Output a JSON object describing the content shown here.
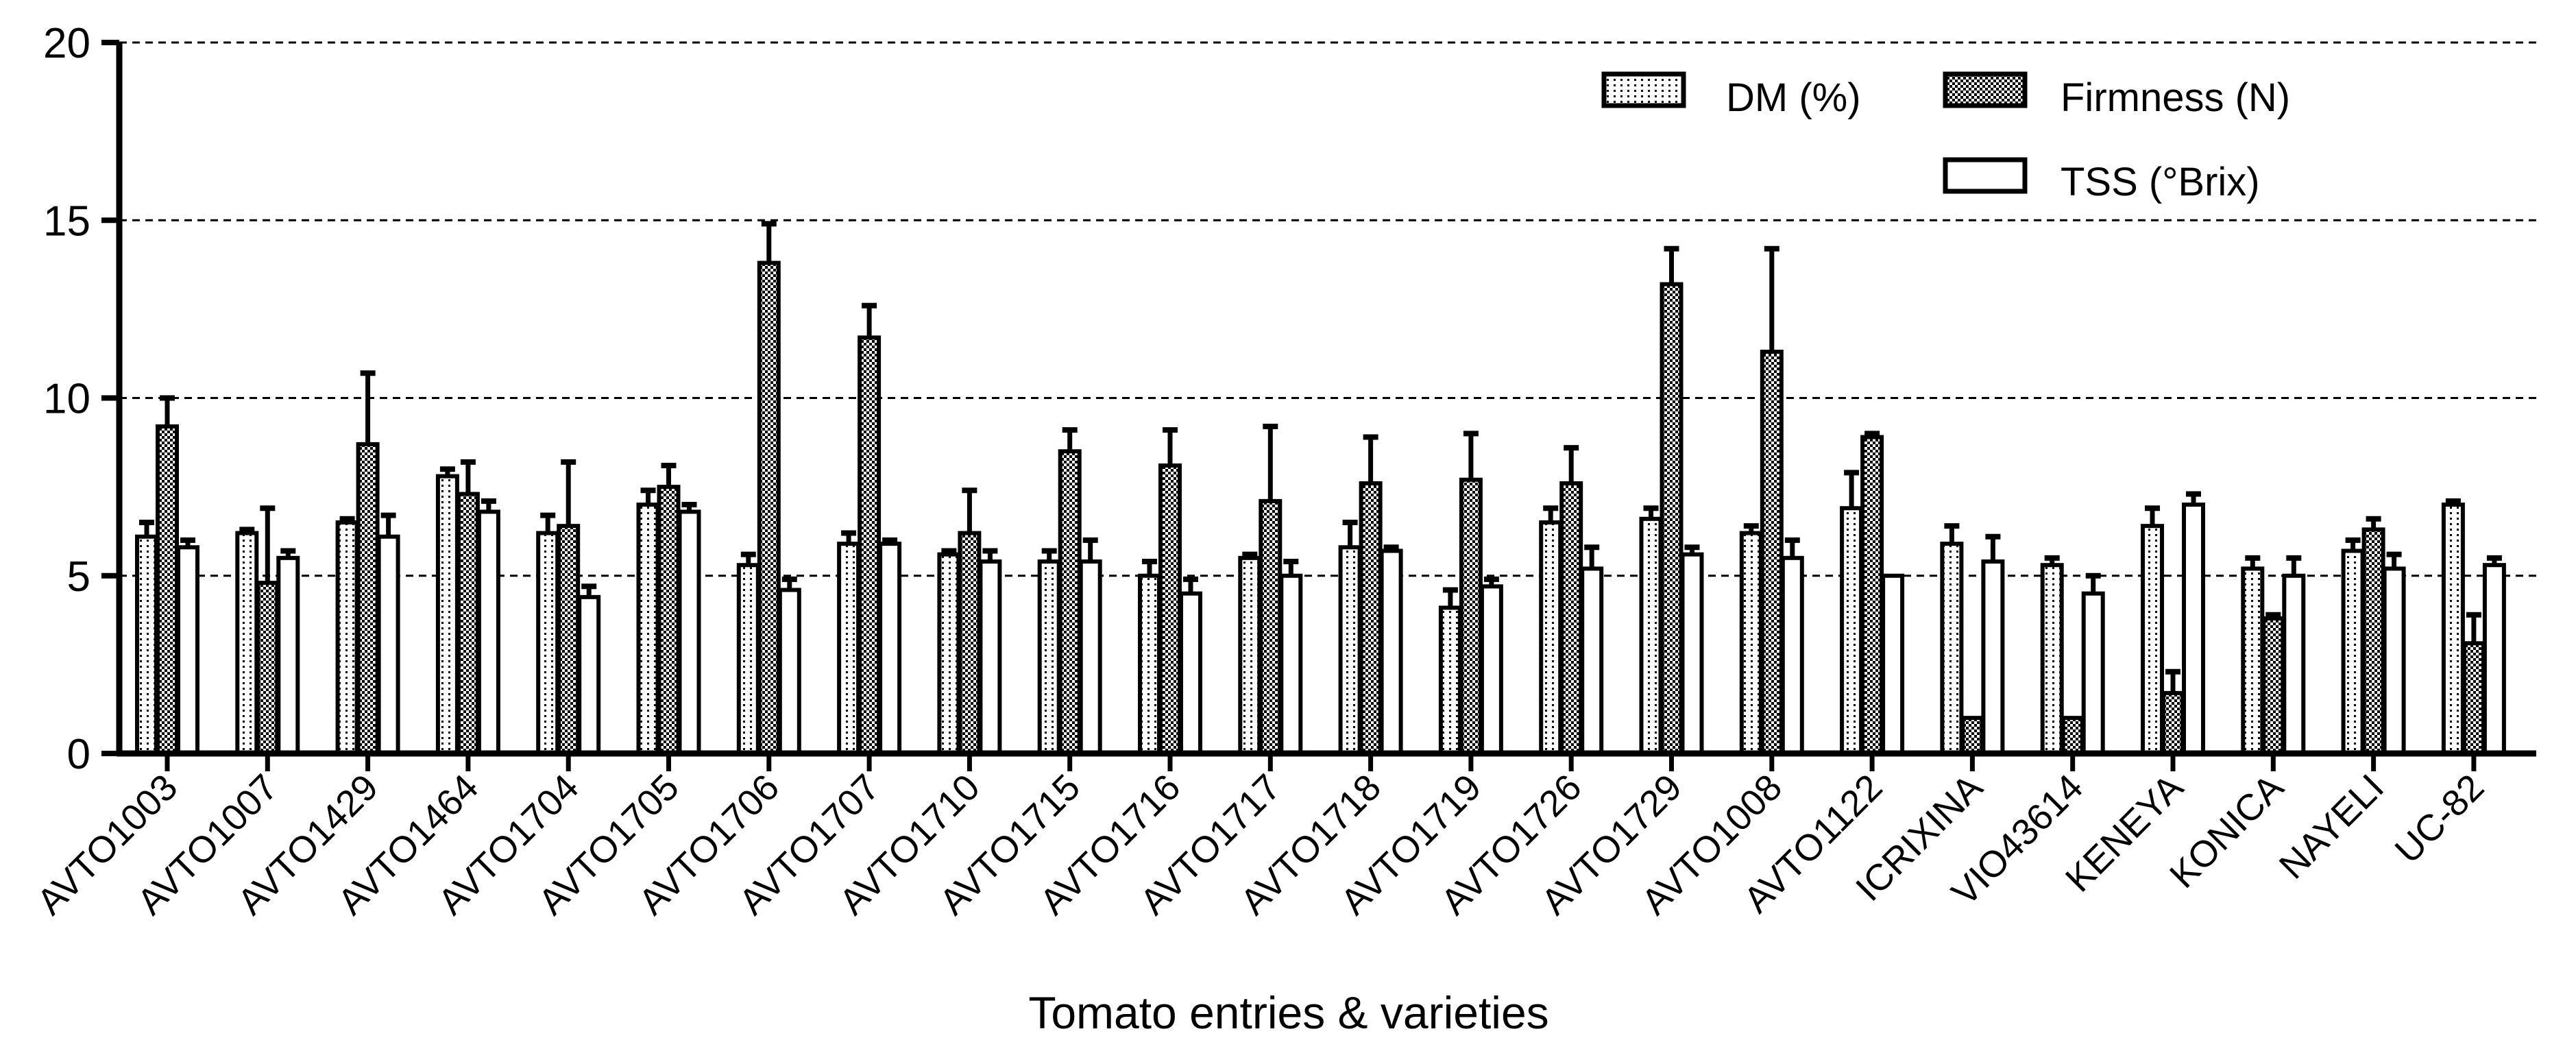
{
  "chart_data": {
    "type": "bar",
    "title": "",
    "xlabel": "Tomato entries & varieties",
    "ylabel": "",
    "ylim": [
      0,
      20
    ],
    "yticks": [
      "0",
      "5",
      "10",
      "15",
      "20"
    ],
    "grid": "horizontal dashed at 5, 10, 15, 20",
    "legend_position": "top-right",
    "categories": [
      "AVTO1003",
      "AVTO1007",
      "AVTO1429",
      "AVTO1464",
      "AVTO1704",
      "AVTO1705",
      "AVTO1706",
      "AVTO1707",
      "AVTO1710",
      "AVTO1715",
      "AVTO1716",
      "AVTO1717",
      "AVTO1718",
      "AVTO1719",
      "AVTO1726",
      "AVTO1729",
      "AVTO1008",
      "AVTO1122",
      "ICRIXINA",
      "VIO43614",
      "KENEYA",
      "KONICA",
      "NAYELI",
      "UC-82"
    ],
    "series": [
      {
        "name": "DM (%)",
        "pattern": "dots",
        "values": [
          6.1,
          6.2,
          6.5,
          7.8,
          6.2,
          7.0,
          5.3,
          5.9,
          5.6,
          5.4,
          5.0,
          5.5,
          5.8,
          4.1,
          6.5,
          6.6,
          6.2,
          6.9,
          5.9,
          5.3,
          6.4,
          5.2,
          5.7,
          7.0
        ],
        "errors": [
          0.4,
          0.1,
          0.1,
          0.2,
          0.5,
          0.4,
          0.3,
          0.3,
          0.1,
          0.3,
          0.4,
          0.1,
          0.7,
          0.5,
          0.4,
          0.3,
          0.2,
          1.0,
          0.5,
          0.2,
          0.5,
          0.3,
          0.3,
          0.1
        ]
      },
      {
        "name": "Firmness (N)",
        "pattern": "checker",
        "values": [
          9.2,
          4.8,
          8.7,
          7.3,
          6.4,
          7.5,
          13.8,
          11.7,
          6.2,
          8.5,
          8.1,
          7.1,
          7.6,
          7.7,
          7.6,
          13.2,
          11.3,
          8.9,
          1.0,
          1.0,
          1.7,
          3.8,
          6.3,
          3.1
        ],
        "errors": [
          0.8,
          2.1,
          2.0,
          0.9,
          1.8,
          0.6,
          1.1,
          0.9,
          1.2,
          0.6,
          1.0,
          2.1,
          1.3,
          1.3,
          1.0,
          1.0,
          2.9,
          0.1,
          0.0,
          0.0,
          0.6,
          0.1,
          0.3,
          0.8
        ]
      },
      {
        "name": "TSS (°Brix)",
        "pattern": "plain",
        "values": [
          5.8,
          5.5,
          6.1,
          6.8,
          4.4,
          6.8,
          4.6,
          5.9,
          5.4,
          5.4,
          4.5,
          5.0,
          5.7,
          4.7,
          5.2,
          5.6,
          5.5,
          5.0,
          5.4,
          4.5,
          7.0,
          5.0,
          5.2,
          5.3
        ],
        "errors": [
          0.2,
          0.2,
          0.6,
          0.3,
          0.3,
          0.2,
          0.3,
          0.1,
          0.3,
          0.6,
          0.4,
          0.4,
          0.1,
          0.2,
          0.6,
          0.2,
          0.5,
          0.0,
          0.7,
          0.5,
          0.3,
          0.5,
          0.4,
          0.2
        ]
      }
    ]
  }
}
